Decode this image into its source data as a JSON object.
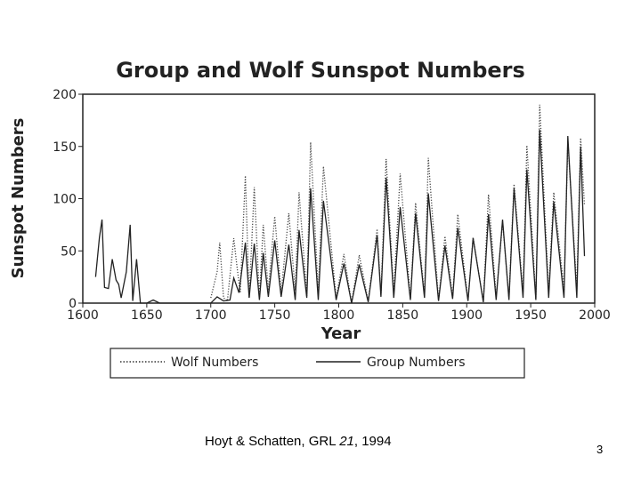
{
  "chart_data": {
    "type": "line",
    "title": "Group and Wolf Sunspot Numbers",
    "xlabel": "Year",
    "ylabel": "Sunspot Numbers",
    "xlim": [
      1600,
      2000
    ],
    "ylim": [
      0,
      200
    ],
    "xticks": [
      1600,
      1650,
      1700,
      1750,
      1800,
      1850,
      1900,
      1950,
      2000
    ],
    "yticks": [
      0,
      50,
      100,
      150,
      200
    ],
    "grid": false,
    "legend_position": "bottom",
    "series": [
      {
        "name": "Wolf Numbers",
        "style": "dotted",
        "x": [
          1700,
          1705,
          1707,
          1710,
          1713,
          1718,
          1720,
          1723,
          1727,
          1730,
          1734,
          1738,
          1741,
          1745,
          1750,
          1755,
          1761,
          1766,
          1769,
          1775,
          1778,
          1784,
          1788,
          1798,
          1804,
          1810,
          1816,
          1823,
          1830,
          1833,
          1837,
          1843,
          1848,
          1856,
          1860,
          1867,
          1870,
          1878,
          1883,
          1889,
          1893,
          1901,
          1905,
          1913,
          1917,
          1923,
          1928,
          1933,
          1937,
          1944,
          1947,
          1954,
          1957,
          1964,
          1968,
          1976,
          1979,
          1986,
          1989,
          1992
        ],
        "y": [
          5,
          30,
          58,
          5,
          2,
          62,
          40,
          10,
          122,
          5,
          111,
          5,
          75,
          12,
          83,
          10,
          86,
          12,
          106,
          7,
          154,
          10,
          131,
          5,
          47,
          0,
          46,
          2,
          71,
          8,
          138,
          10,
          124,
          4,
          96,
          7,
          139,
          3,
          64,
          6,
          85,
          3,
          63,
          1,
          104,
          6,
          78,
          5,
          114,
          10,
          151,
          4,
          190,
          10,
          106,
          13,
          155,
          14,
          158,
          94
        ]
      },
      {
        "name": "Group Numbers",
        "style": "solid",
        "x": [
          1610,
          1613,
          1615,
          1617,
          1620,
          1623,
          1626,
          1628,
          1630,
          1634,
          1637,
          1639,
          1642,
          1645,
          1650,
          1655,
          1660,
          1670,
          1700,
          1705,
          1710,
          1715,
          1718,
          1722,
          1727,
          1730,
          1734,
          1738,
          1741,
          1745,
          1750,
          1755,
          1761,
          1766,
          1769,
          1775,
          1778,
          1784,
          1788,
          1798,
          1804,
          1810,
          1816,
          1823,
          1830,
          1833,
          1837,
          1843,
          1848,
          1856,
          1860,
          1867,
          1870,
          1878,
          1883,
          1889,
          1893,
          1901,
          1905,
          1913,
          1917,
          1923,
          1928,
          1933,
          1937,
          1944,
          1947,
          1954,
          1957,
          1964,
          1968,
          1976,
          1979,
          1986,
          1989,
          1992
        ],
        "y": [
          25,
          63,
          80,
          15,
          14,
          42,
          22,
          18,
          5,
          30,
          75,
          2,
          42,
          0,
          0,
          3,
          0,
          0,
          0,
          6,
          2,
          3,
          24,
          10,
          58,
          5,
          57,
          3,
          48,
          6,
          60,
          6,
          56,
          3,
          70,
          5,
          110,
          3,
          98,
          3,
          38,
          0,
          37,
          1,
          65,
          6,
          120,
          5,
          92,
          3,
          86,
          5,
          105,
          2,
          55,
          4,
          72,
          2,
          62,
          1,
          85,
          3,
          80,
          3,
          110,
          5,
          128,
          3,
          166,
          5,
          97,
          5,
          160,
          5,
          150,
          45
        ]
      }
    ]
  },
  "citation": {
    "prefix": "Hoyt & Schatten, GRL ",
    "volume": "21",
    "suffix": ", 1994"
  },
  "slide_number": "3"
}
